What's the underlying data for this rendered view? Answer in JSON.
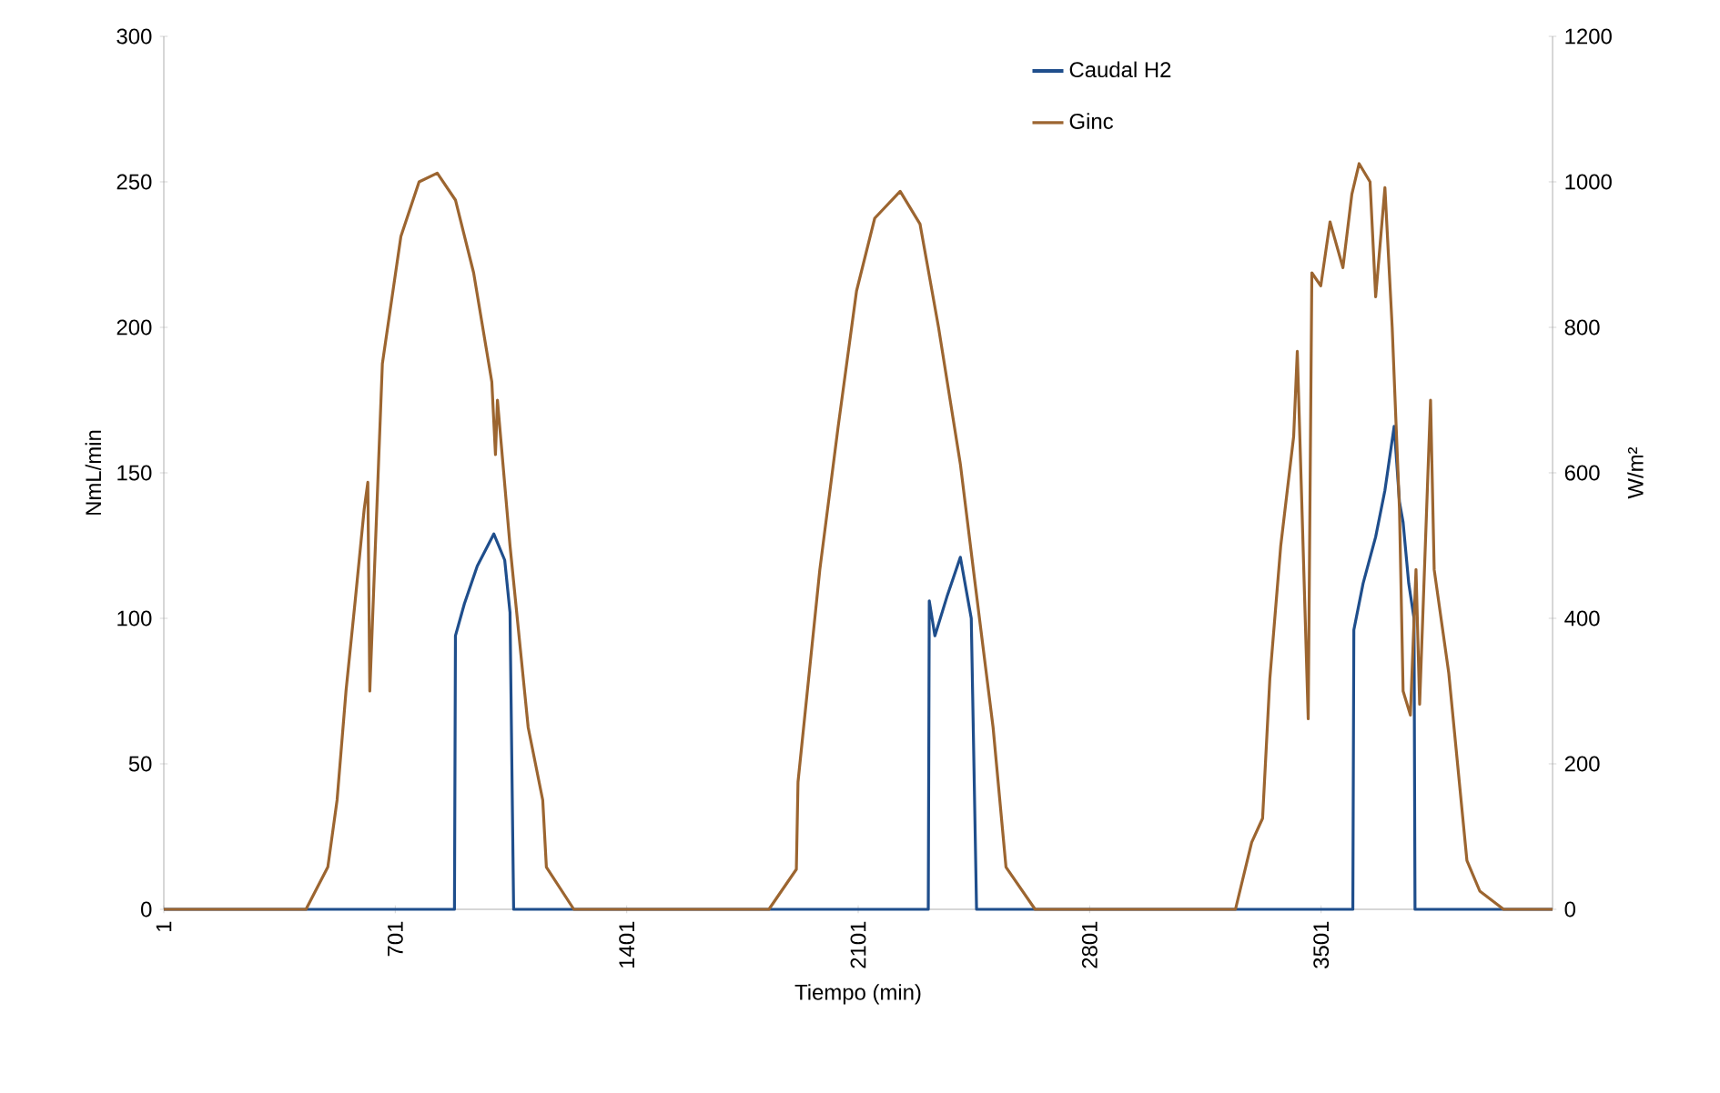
{
  "chart_data": {
    "type": "line",
    "xlabel": "Tiempo (min)",
    "ylabel": "NmL/min",
    "y2label": "W/m²",
    "xlim": [
      1,
      4201
    ],
    "xticks": [
      1,
      701,
      1401,
      2101,
      2801,
      3501
    ],
    "ylim": [
      0,
      300
    ],
    "yticks": [
      0,
      50,
      100,
      150,
      200,
      250,
      300
    ],
    "y2lim": [
      0,
      1200
    ],
    "y2ticks": [
      0,
      200,
      400,
      600,
      800,
      1000,
      1200
    ],
    "grid": false,
    "legend": "top right",
    "marker": "none",
    "line_style": "solid",
    "series": [
      {
        "name": "Caudal H2",
        "color": "#1f4e8c",
        "axis": "y",
        "x": [
          1,
          880,
          883,
          910,
          949,
          999,
          1032,
          1048,
          1059,
          1062,
          2313,
          2316,
          2333,
          2371,
          2410,
          2443,
          2459,
          2462,
          3597,
          3600,
          3628,
          3666,
          3694,
          3722,
          3738,
          3749,
          3766,
          3782,
          3785,
          4201
        ],
        "values": [
          0,
          0,
          94,
          105,
          118,
          129,
          120,
          102,
          0,
          0,
          0,
          106,
          94,
          108,
          121,
          100,
          0,
          0,
          0,
          96,
          112,
          128,
          144,
          166,
          140,
          133,
          112,
          100,
          0,
          0
        ]
      },
      {
        "name": "Ginc",
        "color": "#9c6530",
        "axis": "y2",
        "x": [
          1,
          431,
          497,
          525,
          552,
          580,
          607,
          618,
          624,
          662,
          718,
          773,
          828,
          883,
          938,
          993,
          1004,
          1010,
          1048,
          1103,
          1147,
          1158,
          1241,
          1831,
          1914,
          1919,
          1985,
          2040,
          2096,
          2151,
          2228,
          2288,
          2344,
          2410,
          2454,
          2509,
          2548,
          2636,
          3242,
          3291,
          3324,
          3346,
          3379,
          3418,
          3429,
          3462,
          3473,
          3500,
          3528,
          3567,
          3594,
          3616,
          3649,
          3666,
          3694,
          3716,
          3738,
          3749,
          3771,
          3788,
          3799,
          3832,
          3843,
          3887,
          3942,
          3981,
          4053,
          4201
        ],
        "values": [
          0,
          0,
          58,
          150,
          300,
          425,
          550,
          587,
          300,
          750,
          925,
          1000,
          1012,
          975,
          875,
          725,
          625,
          700,
          500,
          250,
          150,
          58,
          0,
          0,
          55,
          175,
          467,
          662,
          850,
          950,
          987,
          942,
          800,
          612,
          450,
          250,
          58,
          0,
          0,
          92,
          125,
          317,
          500,
          650,
          767,
          262,
          875,
          857,
          945,
          882,
          983,
          1025,
          1000,
          842,
          992,
          800,
          550,
          300,
          267,
          467,
          282,
          700,
          467,
          325,
          67,
          25,
          0,
          0
        ]
      }
    ]
  }
}
